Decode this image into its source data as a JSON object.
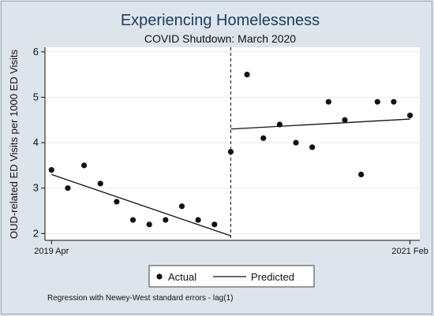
{
  "chart_data": {
    "type": "scatter",
    "title": "Experiencing Homelessness",
    "subtitle": "COVID Shutdown: March 2020",
    "ylabel": "OUD-related ED Visits per 1000 ED Visits",
    "xlabel": "",
    "xticks": [
      "2019 Apr",
      "2021 Feb"
    ],
    "yticks": [
      2,
      3,
      4,
      5,
      6
    ],
    "ylim": [
      1.85,
      6.1
    ],
    "xlim": [
      0.6,
      23.6
    ],
    "grid": true,
    "interruption_x": 12,
    "series": [
      {
        "name": "Actual",
        "kind": "points",
        "x": [
          1,
          2,
          3,
          4,
          5,
          6,
          7,
          8,
          9,
          10,
          11,
          12,
          13,
          14,
          15,
          16,
          17,
          18,
          19,
          20,
          21,
          22,
          23
        ],
        "y": [
          3.4,
          3.0,
          3.5,
          3.1,
          2.7,
          2.3,
          2.2,
          2.3,
          2.6,
          2.3,
          2.2,
          3.8,
          5.5,
          4.1,
          4.4,
          4.0,
          3.9,
          4.9,
          4.5,
          3.3,
          4.9,
          4.9,
          4.6
        ]
      },
      {
        "name": "Predicted",
        "kind": "line",
        "segments": [
          {
            "x": [
              1,
              12
            ],
            "y": [
              3.3,
              1.95
            ]
          },
          {
            "x": [
              12,
              23
            ],
            "y": [
              4.3,
              4.52
            ]
          }
        ]
      }
    ],
    "legend": {
      "placement": "bottom-center",
      "items": [
        "Actual",
        "Predicted"
      ]
    },
    "note": "Regression with Newey-West standard errors - lag(1)"
  },
  "colors": {
    "background": "#dde5ec",
    "plot_background": "#ffffff",
    "title": "#1e3a5f",
    "grid": "#e6ecf1",
    "ink": "#111111"
  }
}
